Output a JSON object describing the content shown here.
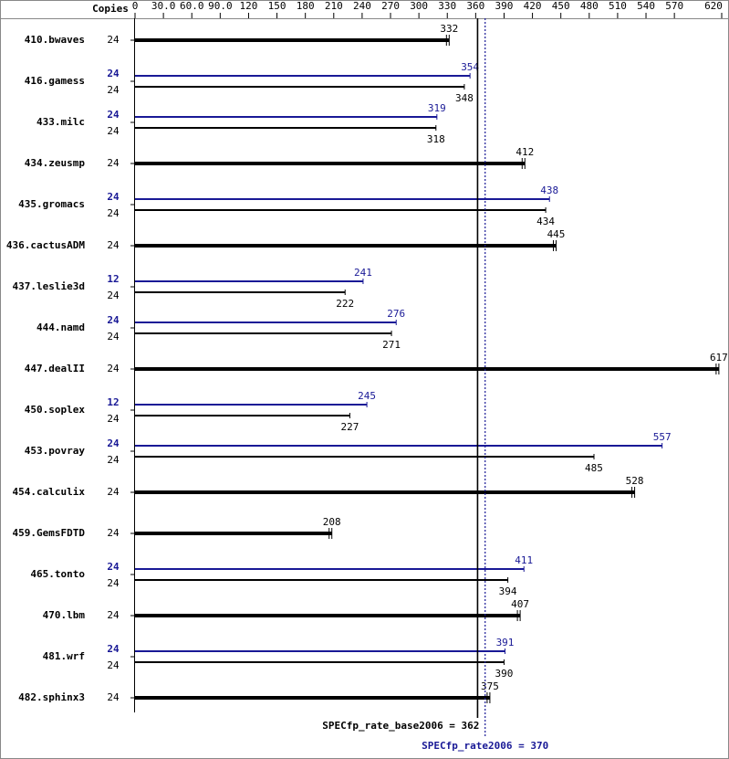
{
  "chart_data": {
    "type": "bar",
    "orientation": "horizontal",
    "copies_label": "Copies",
    "categories": [
      "410.bwaves",
      "416.gamess",
      "433.milc",
      "434.zeusmp",
      "435.gromacs",
      "436.cactusADM",
      "437.leslie3d",
      "444.namd",
      "447.dealII",
      "450.soplex",
      "453.povray",
      "454.calculix",
      "459.GemsFDTD",
      "465.tonto",
      "470.lbm",
      "481.wrf",
      "482.sphinx3"
    ],
    "series": [
      {
        "color": "#000000",
        "copies": [
          24,
          24,
          24,
          24,
          24,
          24,
          24,
          24,
          24,
          24,
          24,
          24,
          24,
          24,
          24,
          24,
          24
        ],
        "values": [
          332,
          348,
          318,
          412,
          434,
          445,
          222,
          271,
          617,
          227,
          485,
          528,
          208,
          394,
          407,
          390,
          375
        ]
      },
      {
        "color": "#191996",
        "copies": [
          null,
          24,
          24,
          null,
          24,
          null,
          12,
          24,
          null,
          12,
          24,
          null,
          null,
          24,
          null,
          24,
          null
        ],
        "values": [
          null,
          354,
          319,
          null,
          438,
          null,
          241,
          276,
          null,
          245,
          557,
          null,
          null,
          411,
          null,
          391,
          null
        ]
      }
    ],
    "xlim": [
      0,
      620
    ],
    "xticks": [
      0,
      {
        "value": 30,
        "label": "30.0"
      },
      {
        "value": 60,
        "label": "60.0"
      },
      {
        "value": 90,
        "label": "90.0"
      },
      120,
      150,
      180,
      210,
      240,
      270,
      300,
      330,
      360,
      390,
      420,
      450,
      480,
      510,
      540,
      570,
      620
    ],
    "reference_lines": [
      {
        "label": "SPECfp_rate_base2006 = 362",
        "value": 362,
        "color": "#000000",
        "style": "solid"
      },
      {
        "label": "SPECfp_rate2006 = 370",
        "value": 370,
        "color": "#191996",
        "style": "dotted"
      }
    ]
  }
}
